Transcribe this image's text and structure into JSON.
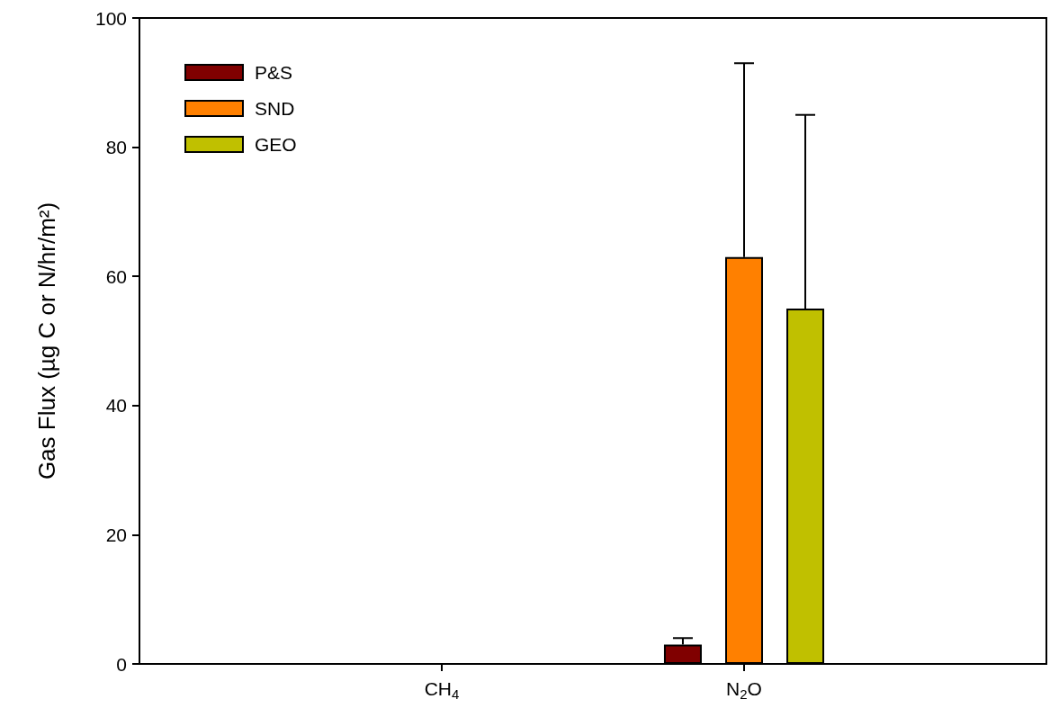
{
  "chart_data": {
    "type": "bar",
    "ylabel": "Gas Flux (µg C or N/hr/m²)",
    "categories": [
      "CH$_{4}$",
      "N$_{2}$O"
    ],
    "series": [
      {
        "name": "P&S",
        "color": "#800000",
        "values": [
          null,
          3
        ],
        "errors": [
          null,
          1
        ]
      },
      {
        "name": "SND",
        "color": "#ff8000",
        "values": [
          null,
          63
        ],
        "errors": [
          null,
          30
        ]
      },
      {
        "name": "GEO",
        "color": "#c0c000",
        "values": [
          null,
          55
        ],
        "errors": [
          null,
          30
        ]
      }
    ],
    "ylim": [
      0,
      100
    ],
    "yticks": [
      0,
      20,
      40,
      60,
      80,
      100
    ],
    "grid": false,
    "legend": "top left"
  }
}
